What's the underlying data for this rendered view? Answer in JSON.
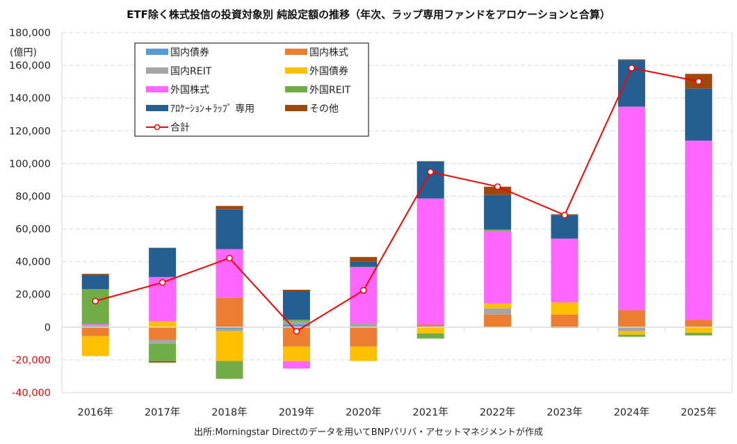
{
  "chart_data": {
    "type": "bar",
    "subtype": "stacked-bar-with-line",
    "title": "ETF除く株式投信の投資対象別 純設定額の推移（年次、ラップ専用ファンドをアロケーションと合算）",
    "xlabel": "",
    "ylabel": "(億円)",
    "ylim": [
      -40000,
      180000
    ],
    "yticks": [
      -40000,
      -20000,
      0,
      20000,
      40000,
      60000,
      80000,
      100000,
      120000,
      140000,
      160000,
      180000
    ],
    "ytick_labels": [
      "-40,000",
      "-20,000",
      "0",
      "20,000",
      "40,000",
      "60,000",
      "80,000",
      "100,000",
      "120,000",
      "140,000",
      "160,000",
      "180,000"
    ],
    "negative_tick_color": "#ff0000",
    "grid": true,
    "legend_position": "top-left",
    "categories": [
      "2016年",
      "2017年",
      "2018年",
      "2019年",
      "2020年",
      "2021年",
      "2022年",
      "2023年",
      "2024年",
      "2025年"
    ],
    "series": [
      {
        "name": "国内債券",
        "color": "#5b9bd5",
        "values": [
          0,
          0,
          -1100,
          1800,
          0,
          500,
          0,
          0,
          0,
          0
        ]
      },
      {
        "name": "国内株式",
        "color": "#ed7d31",
        "values": [
          -5500,
          -7700,
          17900,
          -11900,
          -11900,
          1100,
          7700,
          7700,
          10300,
          4400
        ]
      },
      {
        "name": "国内REIT",
        "color": "#a5a5a5",
        "values": [
          1100,
          -2500,
          -1300,
          1700,
          2500,
          0,
          3800,
          0,
          -2500,
          0
        ]
      },
      {
        "name": "外国債券",
        "color": "#ffc000",
        "values": [
          -12200,
          3500,
          -18300,
          -8900,
          -8800,
          -3800,
          3000,
          7400,
          -2100,
          -3400
        ]
      },
      {
        "name": "外国株式",
        "color": "#ff66ff",
        "values": [
          700,
          27100,
          29800,
          -4500,
          34000,
          77000,
          44300,
          39000,
          124500,
          109600
        ]
      },
      {
        "name": "外国REIT",
        "color": "#70ad47",
        "values": [
          21500,
          -10600,
          -10900,
          1100,
          400,
          -3200,
          850,
          -500,
          -1300,
          -1700
        ]
      },
      {
        "name": "ｱﾛｹｰｼｮﾝ+ﾗｯﾌﾟ 専用",
        "color": "#255e91",
        "values": [
          8600,
          17900,
          24300,
          17400,
          3000,
          22500,
          21100,
          14500,
          28500,
          31900
        ]
      },
      {
        "name": "その他",
        "color": "#9e480e",
        "values": [
          700,
          -850,
          2100,
          850,
          3000,
          400,
          5100,
          400,
          400,
          8900
        ]
      }
    ],
    "line": {
      "name": "合計",
      "color": "#ff0000",
      "values": [
        15900,
        27300,
        42200,
        -2500,
        22500,
        94900,
        85900,
        68500,
        158400,
        150200
      ]
    },
    "source": "出所:Morningstar Directのデータを用いてBNPパリバ・アセットマネジメントが作成"
  }
}
